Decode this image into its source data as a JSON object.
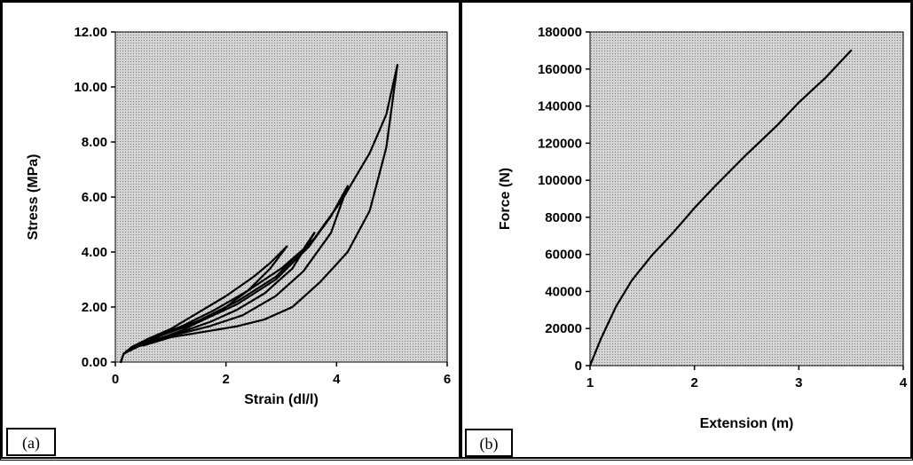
{
  "chart_data": [
    {
      "type": "line",
      "panel_label": "(a)",
      "xlabel": "Strain (dl/l)",
      "ylabel": "Stress (MPa)",
      "xlim": [
        0,
        6
      ],
      "ylim": [
        0,
        12
      ],
      "x_ticks": [
        "0",
        "2",
        "4",
        "6"
      ],
      "y_ticks": [
        "0.00",
        "2.00",
        "4.00",
        "6.00",
        "8.00",
        "10.00",
        "12.00"
      ],
      "x_tick_values": [
        0,
        2,
        4,
        6
      ],
      "y_tick_values": [
        0,
        2,
        4,
        6,
        8,
        10,
        12
      ],
      "grid": false,
      "series": [
        {
          "x": [
            0.1,
            0.15,
            0.3,
            0.6,
            1.0,
            1.5,
            2.0,
            2.5,
            2.8,
            3.1
          ],
          "y": [
            0.0,
            0.3,
            0.55,
            0.85,
            1.2,
            1.8,
            2.4,
            3.1,
            3.6,
            4.2
          ]
        },
        {
          "x": [
            3.1,
            2.8,
            2.4,
            2.0,
            1.6,
            1.2,
            0.8,
            0.4,
            0.15,
            0.1
          ],
          "y": [
            4.2,
            3.4,
            2.6,
            2.0,
            1.55,
            1.15,
            0.85,
            0.55,
            0.3,
            0.0
          ]
        },
        {
          "x": [
            0.15,
            0.6,
            1.2,
            1.8,
            2.4,
            3.0,
            3.4,
            3.6
          ],
          "y": [
            0.3,
            0.85,
            1.3,
            1.9,
            2.6,
            3.4,
            4.1,
            4.7
          ]
        },
        {
          "x": [
            3.6,
            3.2,
            2.7,
            2.2,
            1.7,
            1.2,
            0.6
          ],
          "y": [
            4.7,
            3.4,
            2.5,
            1.9,
            1.45,
            1.1,
            0.75
          ]
        },
        {
          "x": [
            0.2,
            0.8,
            1.5,
            2.2,
            2.9,
            3.5,
            3.9,
            4.2
          ],
          "y": [
            0.4,
            0.95,
            1.45,
            2.1,
            3.0,
            4.2,
            5.3,
            6.4
          ]
        },
        {
          "x": [
            4.2,
            3.9,
            3.4,
            2.9,
            2.3,
            1.7,
            1.1,
            0.6
          ],
          "y": [
            6.4,
            4.7,
            3.3,
            2.4,
            1.7,
            1.3,
            1.0,
            0.7
          ]
        },
        {
          "x": [
            0.2,
            0.8,
            1.5,
            2.2,
            2.9,
            3.6,
            4.1,
            4.6,
            4.9,
            5.1
          ],
          "y": [
            0.4,
            0.95,
            1.5,
            2.2,
            3.1,
            4.5,
            5.9,
            7.6,
            9.0,
            10.8
          ]
        },
        {
          "x": [
            5.1,
            4.9,
            4.6,
            4.2,
            3.7,
            3.2,
            2.7,
            2.2,
            1.6,
            1.0,
            0.5
          ],
          "y": [
            10.8,
            7.8,
            5.5,
            4.0,
            2.9,
            2.0,
            1.55,
            1.3,
            1.1,
            0.9,
            0.6
          ]
        }
      ]
    },
    {
      "type": "line",
      "panel_label": "(b)",
      "xlabel": "Extension (m)",
      "ylabel": "Force (N)",
      "xlim": [
        1,
        4
      ],
      "ylim": [
        0,
        180000
      ],
      "x_ticks": [
        "1",
        "2",
        "3",
        "4"
      ],
      "y_ticks": [
        "0",
        "20000",
        "40000",
        "60000",
        "80000",
        "100000",
        "120000",
        "140000",
        "160000",
        "180000"
      ],
      "x_tick_values": [
        1,
        2,
        3,
        4
      ],
      "y_tick_values": [
        0,
        20000,
        40000,
        60000,
        80000,
        100000,
        120000,
        140000,
        160000,
        180000
      ],
      "grid": false,
      "series": [
        {
          "x": [
            1.0,
            1.1,
            1.25,
            1.4,
            1.6,
            1.8,
            2.0,
            2.2,
            2.5,
            2.8,
            3.0,
            3.25,
            3.5
          ],
          "y": [
            0,
            14000,
            32000,
            46000,
            60000,
            72000,
            85000,
            97000,
            114000,
            130000,
            142000,
            155000,
            170000
          ]
        }
      ]
    }
  ]
}
